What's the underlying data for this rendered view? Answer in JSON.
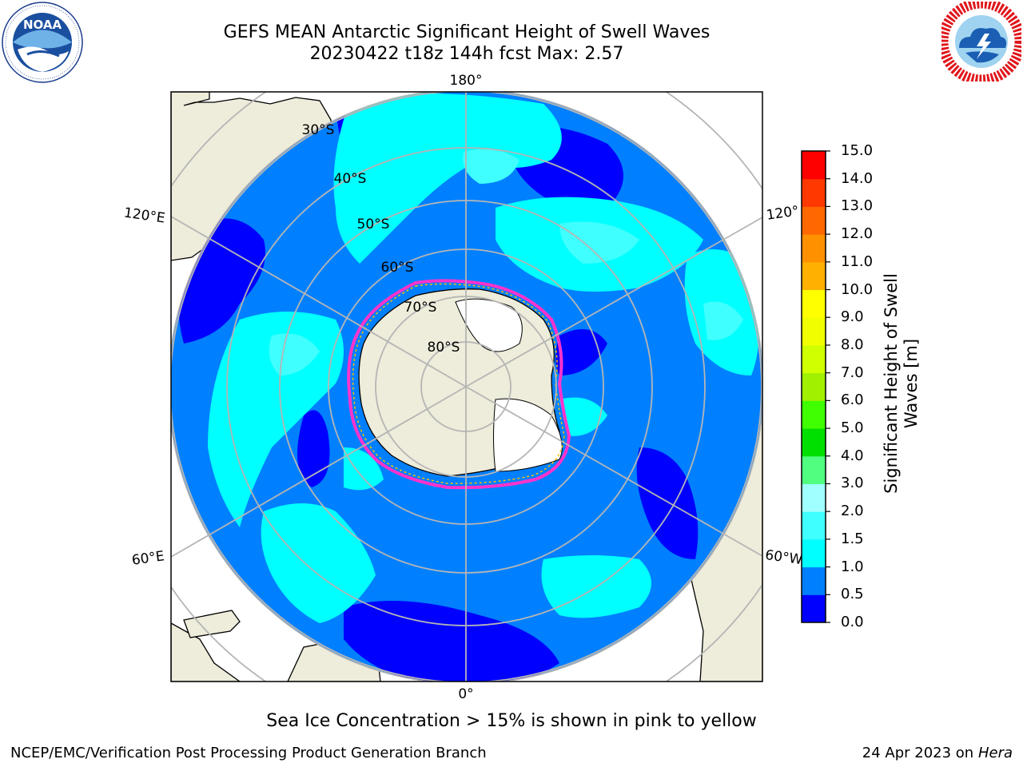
{
  "header": {
    "title_line1": "GEFS MEAN Antarctic Significant Height of Swell Waves",
    "title_line2": "20230422 t18z 144h fcst   Max: 2.57"
  },
  "logos": {
    "left": {
      "icon": "noaa-logo",
      "text": "NOAA"
    },
    "right": {
      "icon": "nws-logo"
    }
  },
  "map": {
    "projection": "south-polar-stereographic",
    "meridian_labels": [
      "180°",
      "120°E",
      "120°",
      "60°E",
      "60°W",
      "0°"
    ],
    "parallel_labels": [
      "30°S",
      "40°S",
      "50°S",
      "60°S",
      "70°S",
      "80°S"
    ],
    "colors": {
      "land": "#eeecda",
      "ice": "#ffffff",
      "ice_edge": "#ff33cc",
      "grid": "#b5b5b5"
    }
  },
  "colorbar": {
    "label": "Significant Height of Swell Waves [m]",
    "ticks": [
      "0.0",
      "0.5",
      "1.0",
      "1.5",
      "2.0",
      "3.0",
      "4.0",
      "5.0",
      "6.0",
      "7.0",
      "8.0",
      "9.0",
      "10.0",
      "11.0",
      "12.0",
      "13.0",
      "14.0",
      "15.0"
    ],
    "colors": [
      "#0000ff",
      "#0080ff",
      "#00ffff",
      "#40ffff",
      "#a0ffff",
      "#50ff80",
      "#00e000",
      "#40ff00",
      "#a0f000",
      "#d0ff00",
      "#f0ff00",
      "#ffff00",
      "#ffb000",
      "#ff9000",
      "#ff6800",
      "#ff3800",
      "#ff0000"
    ]
  },
  "note": "Sea Ice Concentration > 15% is shown in pink to yellow",
  "footer": {
    "left": "NCEP/EMC/Verification Post Processing Product Generation Branch",
    "right_date": "24 Apr 2023 on ",
    "right_host": "Hera"
  }
}
